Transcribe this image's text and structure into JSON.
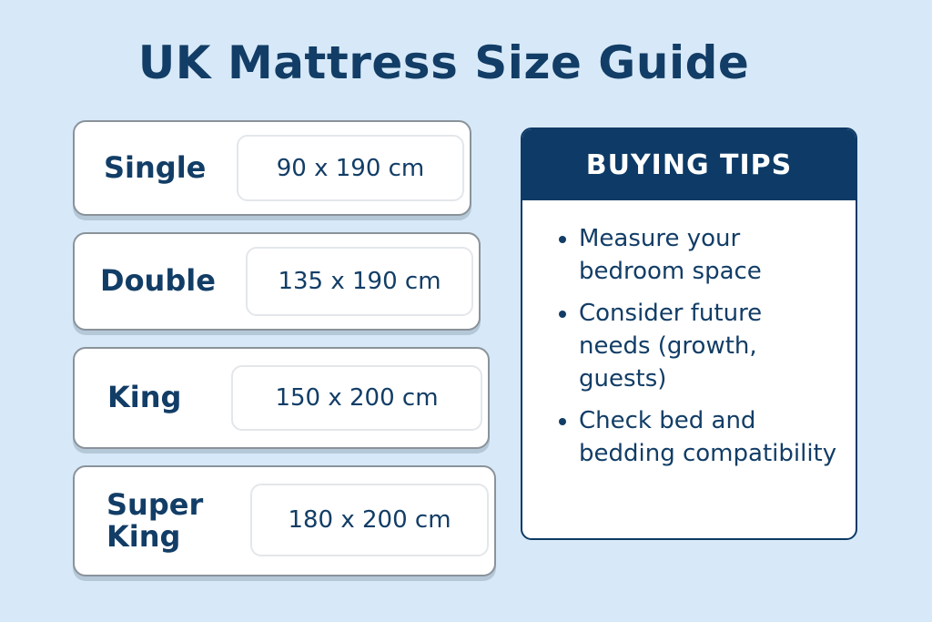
{
  "title": "UK Mattress Size Guide",
  "sizes": [
    {
      "name": "Single",
      "dimensions": "90 x 190 cm"
    },
    {
      "name": "Double",
      "dimensions": "135 x 190 cm"
    },
    {
      "name": "King",
      "dimensions": "150 x 200 cm"
    },
    {
      "name": "Super King",
      "dimensions": "180 x 200 cm"
    }
  ],
  "tips": {
    "heading": "BUYING TIPS",
    "items": [
      "Measure your bedroom space",
      "Consider future needs (growth, guests)",
      "Check bed and bedding compatibility"
    ]
  },
  "colors": {
    "background": "#d7e9f8",
    "navy": "#0d3a66"
  }
}
